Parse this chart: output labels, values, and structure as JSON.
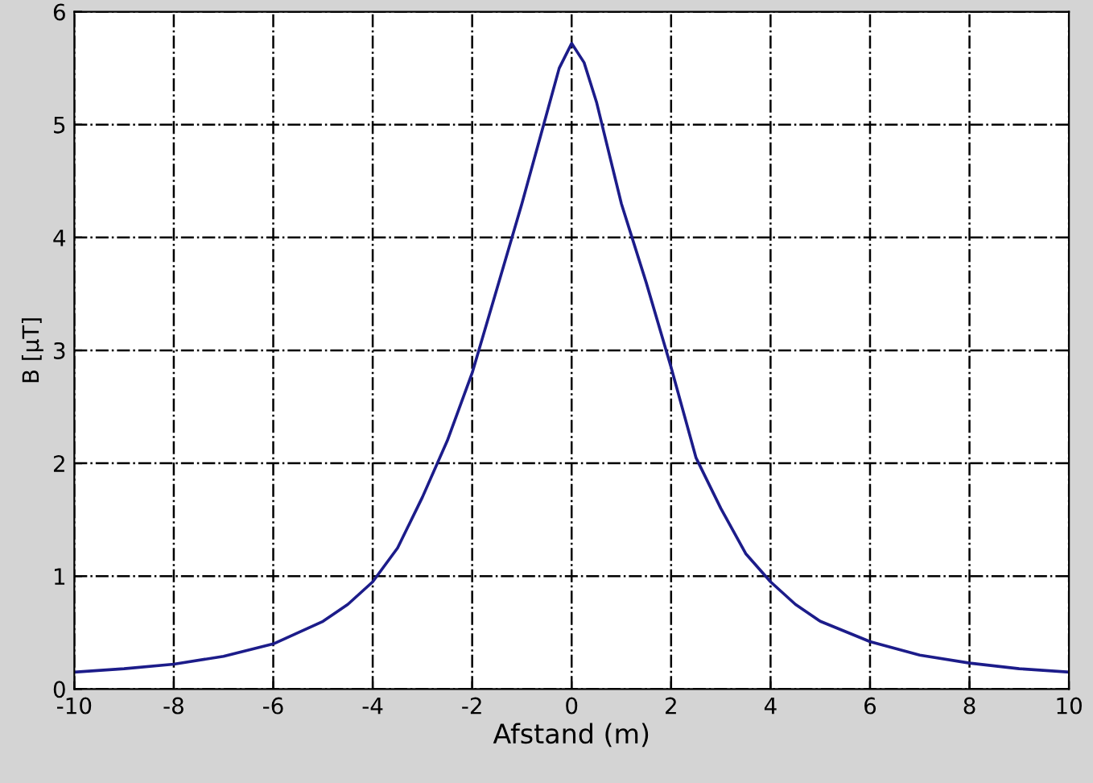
{
  "chart_data": {
    "type": "line",
    "xlabel": "Afstand (m)",
    "ylabel": "B [μT]",
    "xlim": [
      -10,
      10
    ],
    "ylim": [
      0,
      6
    ],
    "xticks": [
      -10,
      -8,
      -6,
      -4,
      -2,
      0,
      2,
      4,
      6,
      8,
      10
    ],
    "yticks": [
      0,
      1,
      2,
      3,
      4,
      5,
      6
    ],
    "grid": true,
    "line_style": "solid",
    "marker": "none",
    "series": [
      {
        "color": "#1c1c8a",
        "x": [
          -10,
          -9,
          -8,
          -7,
          -6,
          -5,
          -4.5,
          -4,
          -3.5,
          -3,
          -2.5,
          -2,
          -1.5,
          -1,
          -0.5,
          -0.25,
          0,
          0.25,
          0.5,
          1,
          1.5,
          2,
          2.5,
          3,
          3.5,
          4,
          4.5,
          5,
          6,
          7,
          8,
          9,
          10
        ],
        "values": [
          0.15,
          0.18,
          0.22,
          0.29,
          0.4,
          0.6,
          0.75,
          0.95,
          1.25,
          1.7,
          2.2,
          2.8,
          3.55,
          4.3,
          5.1,
          5.5,
          5.72,
          5.55,
          5.2,
          4.3,
          3.6,
          2.85,
          2.05,
          1.6,
          1.2,
          0.95,
          0.75,
          0.6,
          0.42,
          0.3,
          0.23,
          0.18,
          0.15
        ]
      }
    ]
  }
}
